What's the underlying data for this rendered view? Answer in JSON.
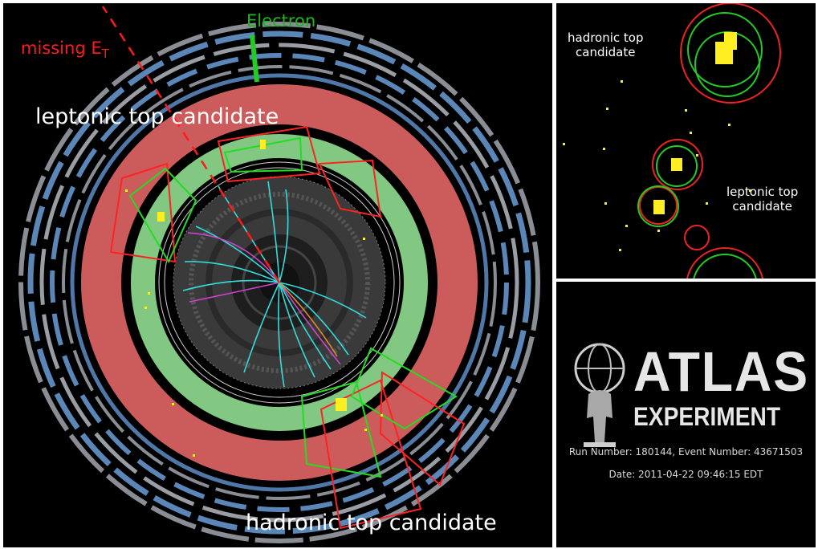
{
  "main_view": {
    "electron_label": "Electron",
    "met_label_main": "missing E",
    "met_label_sub": "T",
    "leptonic_label": "leptonic top candidate",
    "hadronic_label": "hadronic top candidate"
  },
  "zoom_view": {
    "hadronic_line1": "hadronic top",
    "hadronic_line2": "candidate",
    "leptonic_line1": "leptonic top",
    "leptonic_line2": "candidate"
  },
  "logo": {
    "word1": "ATLAS",
    "word2": "EXPERIMENT",
    "run_info": "Run Number: 180144, Event Number: 43671503",
    "date": "Date: 2011-04-22 09:46:15 EDT"
  },
  "colors": {
    "electron": "#1ab81a",
    "missing_et": "#ff1a1a",
    "em_calorimeter": "#82c882",
    "hadronic_calorimeter": "#cc5c5c",
    "muon_chambers": "#5b86b8"
  }
}
